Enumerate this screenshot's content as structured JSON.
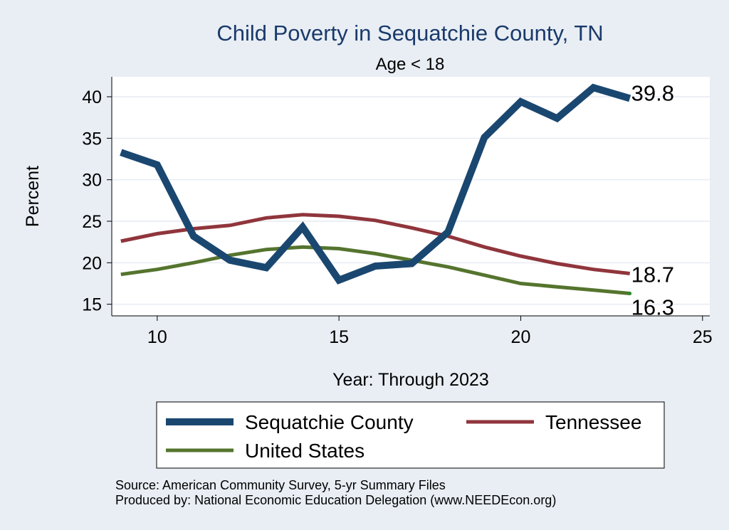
{
  "chart_data": {
    "type": "line",
    "title": "Child Poverty in Sequatchie County, TN",
    "subtitle": "Age < 18",
    "xlabel": "Year: Through 2023",
    "ylabel": "Percent",
    "xlim": [
      8.75,
      25.2
    ],
    "ylim": [
      13.6,
      42.4
    ],
    "xticks": [
      10,
      15,
      20,
      25
    ],
    "yticks": [
      15,
      20,
      25,
      30,
      35,
      40
    ],
    "grid": true,
    "legend_position": "bottom",
    "x": [
      9,
      10,
      11,
      12,
      13,
      14,
      15,
      16,
      17,
      18,
      19,
      20,
      21,
      22,
      23
    ],
    "series": [
      {
        "name": "Sequatchie County",
        "color": "#1a476f",
        "values": [
          33.3,
          31.8,
          23.2,
          20.3,
          19.4,
          24.3,
          17.9,
          19.6,
          19.9,
          23.7,
          35.1,
          39.4,
          37.4,
          41.1,
          39.8
        ],
        "end_label": "39.8"
      },
      {
        "name": "Tennessee",
        "color": "#90353b",
        "values": [
          22.6,
          23.5,
          24.1,
          24.5,
          25.4,
          25.8,
          25.6,
          25.1,
          24.2,
          23.2,
          21.9,
          20.8,
          19.9,
          19.2,
          18.7
        ],
        "end_label": "18.7"
      },
      {
        "name": "United States",
        "color": "#55752f",
        "values": [
          18.6,
          19.2,
          20.0,
          20.9,
          21.6,
          21.9,
          21.7,
          21.1,
          20.3,
          19.5,
          18.5,
          17.5,
          17.1,
          16.7,
          16.3
        ],
        "end_label": "16.3"
      }
    ]
  },
  "footer": {
    "source": "Source: American Community Survey, 5-yr Summary Files",
    "produced_by": "Produced by: National Economic Education Delegation (www.NEEDEcon.org)"
  }
}
